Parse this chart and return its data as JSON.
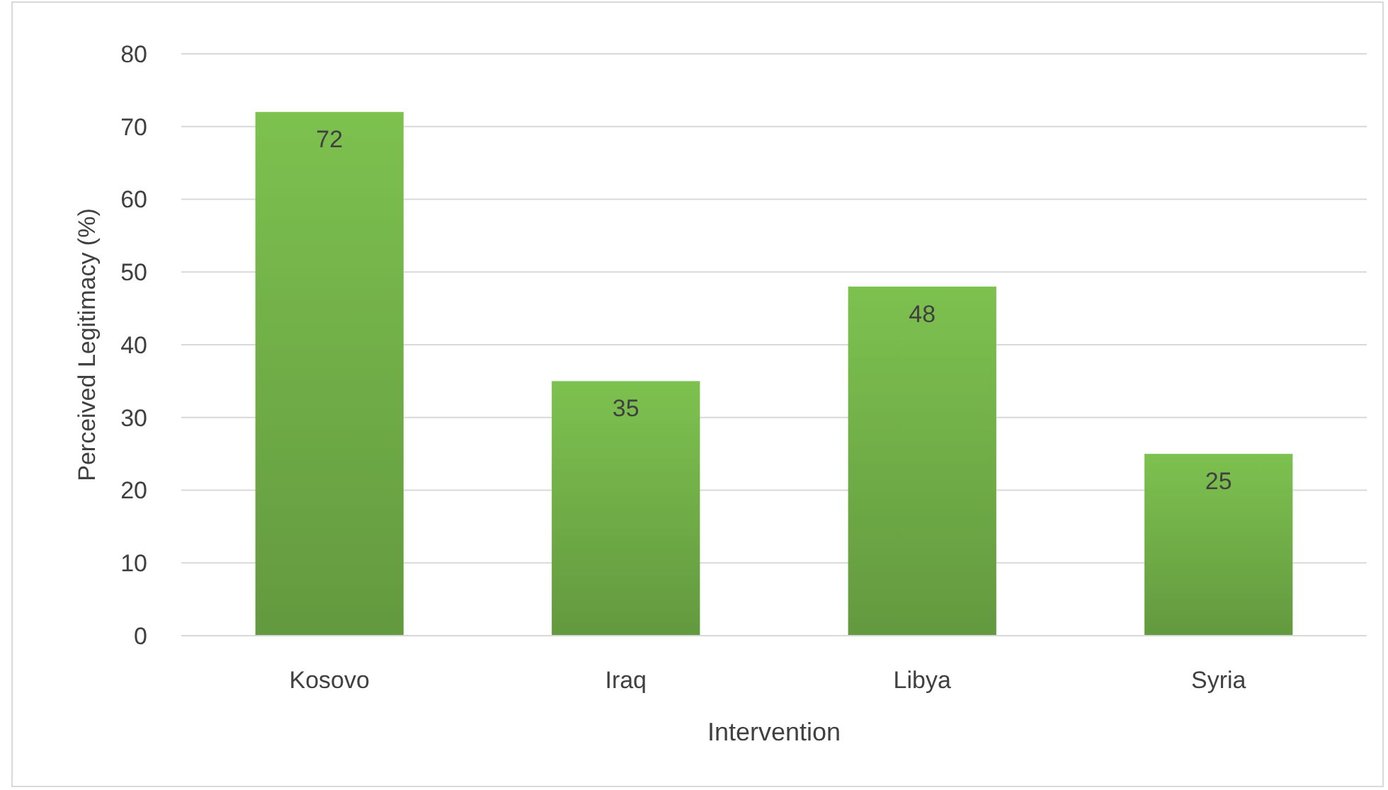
{
  "chart_data": {
    "type": "bar",
    "xlabel": "Intervention",
    "ylabel": "Perceived Legitimacy (%)",
    "categories": [
      "Kosovo",
      "Iraq",
      "Libya",
      "Syria"
    ],
    "values": [
      72,
      35,
      48,
      25
    ],
    "color": "#70ad47",
    "ylim": [
      0,
      80
    ],
    "yticks": [
      0,
      10,
      20,
      30,
      40,
      50,
      60,
      70,
      80
    ],
    "grid": "y",
    "data_labels": true
  }
}
